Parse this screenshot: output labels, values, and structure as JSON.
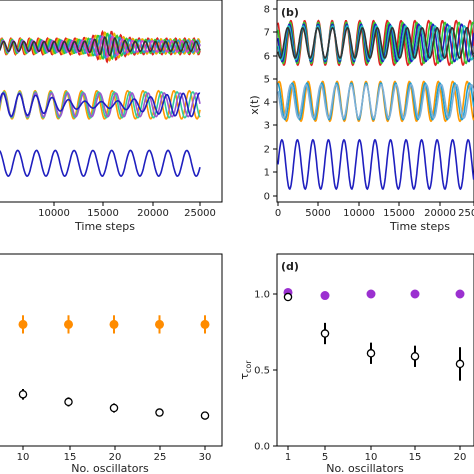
{
  "chart_data": [
    {
      "panel": "a",
      "type": "line",
      "xlabel": "Time steps",
      "x_ticks": [
        "10000",
        "15000",
        "20000",
        "25000"
      ],
      "xlim": [
        5000,
        25000
      ],
      "groups": [
        {
          "level": 1.4,
          "amp": 0.55,
          "period": 1950,
          "colors": [
            "#1f1fbf"
          ]
        },
        {
          "level": 3.9,
          "amp": 0.6,
          "period": 1650,
          "colors": [
            "#ff9900",
            "#33cc99",
            "#9b59d0",
            "#1f1fbf"
          ]
        },
        {
          "level": 6.4,
          "amp": 0.35,
          "period": 1000,
          "colors": [
            "#e02020",
            "#e8b000",
            "#33cc33",
            "#1f9fd0",
            "#d040d0",
            "#333333"
          ]
        }
      ]
    },
    {
      "panel": "b",
      "panel_label": "(b)",
      "type": "line",
      "xlabel": "Time steps",
      "ylabel": "x(t)",
      "x_ticks": [
        "0",
        "5000",
        "10000",
        "15000",
        "20000",
        "25000"
      ],
      "y_ticks": [
        "0",
        "1",
        "2",
        "3",
        "4",
        "5",
        "6",
        "7",
        "8"
      ],
      "xlim": [
        0,
        25000
      ],
      "ylim": [
        0,
        8.5
      ],
      "groups": [
        {
          "level": 1.35,
          "amp": 1.05,
          "period": 2000,
          "colors": [
            "#1f1fbf"
          ]
        },
        {
          "level": 4.05,
          "amp": 0.85,
          "period": 1900,
          "colors": [
            "#ff9900",
            "#1f9fd0",
            "#7fb0d8"
          ]
        },
        {
          "level": 6.55,
          "amp": 0.95,
          "period": 1850,
          "colors": [
            "#e02020",
            "#33cc33",
            "#1f1fbf",
            "#1fbfbf",
            "#333333"
          ]
        }
      ]
    },
    {
      "panel": "c",
      "type": "scatter",
      "xlabel": "No. oscillators",
      "x_ticks": [
        "10",
        "15",
        "20",
        "25",
        "30"
      ],
      "xlim": [
        5,
        32.5
      ],
      "ylim": [
        0,
        1.15
      ],
      "series": [
        {
          "marker": "filled",
          "color": "#ff8c00",
          "x": [
            10,
            15,
            20,
            25,
            30
          ],
          "y": [
            0.8,
            0.8,
            0.8,
            0.8,
            0.8
          ],
          "err": [
            0.06,
            0.06,
            0.06,
            0.06,
            0.06
          ]
        },
        {
          "marker": "open",
          "color": "#000000",
          "x": [
            10,
            15,
            20,
            25,
            30
          ],
          "y": [
            0.34,
            0.29,
            0.25,
            0.22,
            0.2
          ],
          "err": [
            0.035,
            0.03,
            0.03,
            0.025,
            0.02
          ]
        }
      ]
    },
    {
      "panel": "d",
      "panel_label": "(d)",
      "type": "scatter",
      "xlabel": "No. oscillators",
      "ylabel": "τ_cor",
      "x_ticks": [
        "1",
        "5",
        "10",
        "15",
        "20"
      ],
      "y_ticks": [
        "0.0",
        "0.5",
        "1.0"
      ],
      "xlim": [
        -1.5,
        21
      ],
      "ylim": [
        0,
        1.15
      ],
      "series": [
        {
          "marker": "filled",
          "color": "#9b30d0",
          "x": [
            1,
            5,
            10,
            15,
            20
          ],
          "y": [
            1.01,
            0.99,
            1.0,
            1.0,
            1.0
          ],
          "err": [
            0,
            0,
            0,
            0,
            0
          ]
        },
        {
          "marker": "open",
          "color": "#000000",
          "x": [
            1,
            5,
            10,
            15,
            20
          ],
          "y": [
            0.98,
            0.74,
            0.61,
            0.59,
            0.54
          ],
          "err": [
            0.02,
            0.07,
            0.07,
            0.07,
            0.11
          ]
        }
      ]
    }
  ]
}
